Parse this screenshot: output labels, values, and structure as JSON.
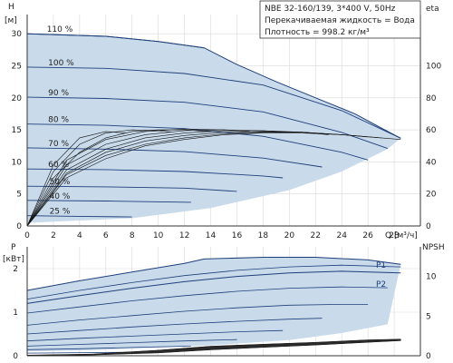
{
  "chart_data": [
    {
      "type": "line",
      "panel": "head-and-efficiency",
      "info_box": {
        "line1": "NBE 32-160/139, 3*400 V, 50Hz",
        "line2": "Перекачиваемая жидкость = Вода",
        "line3": "Плотность = 998.2 кг/м³"
      },
      "ylabel": [
        "H",
        "[м]"
      ],
      "ylabel_right": "eta",
      "xlabel_q": "Q",
      "xlabel_unit": "[м³/ч]",
      "xlim": [
        0,
        30
      ],
      "ylim": [
        0,
        33
      ],
      "ylim_right": [
        0,
        132
      ],
      "x_ticks": [
        0,
        2,
        4,
        6,
        8,
        10,
        12,
        14,
        16,
        18,
        20,
        22,
        24,
        26,
        28
      ],
      "y_ticks": [
        0,
        5,
        10,
        15,
        20,
        25,
        30
      ],
      "y_ticks_right": [
        0,
        20,
        40,
        60,
        80,
        100
      ],
      "grid": true,
      "fill_color": "#c9dbeb",
      "line_color": "#1f3f7a",
      "speed_labels": [
        "110 %",
        "100 %",
        "90 %",
        "80 %",
        "70 %",
        "60 %",
        "50 %",
        "40 %",
        "25 %"
      ],
      "operating_area": {
        "upper_x": [
          0,
          6,
          10,
          13.5,
          16,
          19,
          22,
          25,
          27,
          28.5
        ],
        "upper_y": [
          30,
          29.6,
          28.8,
          27.8,
          25.2,
          22.5,
          20.0,
          17.5,
          15.3,
          13.7
        ],
        "lower_x": [
          0,
          8,
          14,
          20,
          24,
          27.5
        ],
        "lower_y": [
          0.5,
          1.2,
          2.8,
          5.6,
          8.5,
          12.0
        ]
      },
      "head_series": [
        {
          "speed": 110,
          "x": [
            0,
            6,
            10,
            13.5
          ],
          "y": [
            30,
            29.6,
            28.8,
            27.8
          ]
        },
        {
          "speed": 100,
          "x": [
            0,
            6,
            12,
            18,
            24,
            28.5
          ],
          "y": [
            24.8,
            24.6,
            23.8,
            22.0,
            18.0,
            13.7
          ]
        },
        {
          "speed": 90,
          "x": [
            0,
            6,
            12,
            18,
            24,
            27.5
          ],
          "y": [
            20.1,
            19.9,
            19.3,
            17.8,
            14.6,
            12.1
          ]
        },
        {
          "speed": 80,
          "x": [
            0,
            6,
            12,
            18,
            24,
            26
          ],
          "y": [
            15.9,
            15.7,
            15.2,
            14.0,
            11.5,
            10.3
          ]
        },
        {
          "speed": 70,
          "x": [
            0,
            6,
            12,
            18,
            22.5
          ],
          "y": [
            12.2,
            12.0,
            11.6,
            10.6,
            9.2
          ]
        },
        {
          "speed": 60,
          "x": [
            0,
            6,
            12,
            18,
            19.5
          ],
          "y": [
            8.9,
            8.8,
            8.5,
            7.8,
            7.5
          ]
        },
        {
          "speed": 50,
          "x": [
            0,
            6,
            12,
            16
          ],
          "y": [
            6.2,
            6.1,
            5.9,
            5.4
          ]
        },
        {
          "speed": 40,
          "x": [
            0,
            6,
            12.5
          ],
          "y": [
            4.0,
            3.9,
            3.7
          ]
        },
        {
          "speed": 25,
          "x": [
            0,
            4,
            8
          ],
          "y": [
            1.6,
            1.5,
            1.4
          ]
        }
      ],
      "efficiency_series": [
        {
          "x": [
            0,
            3,
            6,
            9,
            12,
            15,
            18,
            21,
            24,
            27,
            28.5
          ],
          "y": [
            0,
            30,
            42,
            50,
            54,
            57,
            58,
            58,
            57,
            55,
            54
          ]
        },
        {
          "x": [
            0,
            3,
            6,
            9,
            12,
            15,
            18,
            21,
            24,
            27
          ],
          "y": [
            0,
            32,
            44,
            51,
            55,
            57.5,
            58.5,
            58.5,
            57,
            55
          ]
        },
        {
          "x": [
            0,
            3,
            6,
            9,
            12,
            15,
            18,
            21,
            24,
            26
          ],
          "y": [
            0,
            33,
            46,
            53,
            56.5,
            58.5,
            59,
            58.5,
            57,
            55.5
          ]
        },
        {
          "x": [
            0,
            3,
            6,
            9,
            12,
            15,
            18,
            21,
            23
          ],
          "y": [
            0,
            35,
            48,
            55,
            58,
            59.5,
            59.5,
            58.5,
            57
          ]
        },
        {
          "x": [
            0,
            3,
            6,
            9,
            12,
            15,
            18,
            20
          ],
          "y": [
            0,
            38,
            51,
            57,
            59.5,
            60,
            59.5,
            58.5
          ]
        },
        {
          "x": [
            0,
            3,
            6,
            9,
            12,
            15,
            17
          ],
          "y": [
            0,
            41,
            54,
            59,
            60.5,
            60,
            59
          ]
        },
        {
          "x": [
            0,
            2,
            4,
            6,
            8,
            10,
            12,
            14
          ],
          "y": [
            0,
            30,
            46,
            55,
            59,
            60,
            60,
            59
          ]
        },
        {
          "x": [
            0,
            2,
            4,
            6,
            8,
            10,
            11
          ],
          "y": [
            0,
            34,
            51,
            58,
            60,
            59.5,
            58.5
          ]
        },
        {
          "x": [
            0,
            2,
            4,
            6,
            7.5
          ],
          "y": [
            0,
            38,
            55,
            59,
            58
          ]
        }
      ]
    },
    {
      "type": "line",
      "panel": "power-and-npsh",
      "ylabel": [
        "P",
        "[кВт]"
      ],
      "ylabel_right": "NPSH",
      "xlim": [
        0,
        30
      ],
      "ylim": [
        0,
        2.5
      ],
      "ylim_right": [
        0,
        13.75
      ],
      "y_ticks": [
        0,
        1,
        2
      ],
      "y_ticks_right": [
        0,
        5,
        10
      ],
      "grid": true,
      "fill_color": "#c9dbeb",
      "line_color": "#1f3f7a",
      "series_labels": {
        "p1": "P1",
        "p2": "P2"
      },
      "p1": {
        "x": [
          0,
          4,
          8,
          12,
          13.5,
          18,
          22,
          26,
          28.5
        ],
        "y": [
          1.5,
          1.72,
          1.92,
          2.12,
          2.22,
          2.26,
          2.26,
          2.2,
          2.1
        ]
      },
      "p2": {
        "x": [
          0,
          4,
          8,
          12,
          16,
          20,
          24,
          28.5
        ],
        "y": [
          1.2,
          1.38,
          1.55,
          1.7,
          1.82,
          1.9,
          1.94,
          1.9
        ]
      },
      "p1_bottom": {
        "x": [
          0,
          4,
          8,
          14,
          20,
          24,
          27.5
        ],
        "y": [
          0.1,
          0.12,
          0.16,
          0.24,
          0.36,
          0.52,
          0.72
        ]
      },
      "power_speed_curves": [
        {
          "x": [
            0,
            4,
            8,
            12,
            16,
            20,
            24,
            28.5
          ],
          "y": [
            1.3,
            1.5,
            1.68,
            1.84,
            1.96,
            2.04,
            2.08,
            2.04
          ]
        },
        {
          "x": [
            0,
            4,
            8,
            12,
            16,
            20,
            24,
            27.5
          ],
          "y": [
            0.98,
            1.12,
            1.26,
            1.38,
            1.48,
            1.55,
            1.58,
            1.56
          ]
        },
        {
          "x": [
            0,
            4,
            8,
            12,
            16,
            20,
            24,
            26
          ],
          "y": [
            0.7,
            0.82,
            0.92,
            1.02,
            1.1,
            1.16,
            1.18,
            1.18
          ]
        },
        {
          "x": [
            0,
            4,
            8,
            12,
            16,
            20,
            22.5
          ],
          "y": [
            0.5,
            0.58,
            0.66,
            0.73,
            0.79,
            0.84,
            0.86
          ]
        },
        {
          "x": [
            0,
            4,
            8,
            12,
            16,
            19.5
          ],
          "y": [
            0.34,
            0.4,
            0.45,
            0.5,
            0.55,
            0.58
          ]
        },
        {
          "x": [
            0,
            4,
            8,
            12,
            16
          ],
          "y": [
            0.22,
            0.26,
            0.3,
            0.34,
            0.37
          ]
        },
        {
          "x": [
            0,
            4,
            8,
            12.5
          ],
          "y": [
            0.14,
            0.16,
            0.19,
            0.22
          ]
        },
        {
          "x": [
            0,
            4,
            8
          ],
          "y": [
            0.06,
            0.07,
            0.08
          ]
        }
      ],
      "npsh_band_top": {
        "x": [
          0,
          5,
          10,
          14,
          18,
          22,
          26,
          28.5
        ],
        "y": [
          0.08,
          0.22,
          0.7,
          1.2,
          1.45,
          1.7,
          2.0,
          2.1
        ]
      },
      "npsh_band_bottom": {
        "x": [
          0,
          5,
          10,
          14,
          18,
          22,
          26,
          28.5
        ],
        "y": [
          0.02,
          0.1,
          0.35,
          0.75,
          1.05,
          1.35,
          1.7,
          1.9
        ]
      }
    }
  ]
}
